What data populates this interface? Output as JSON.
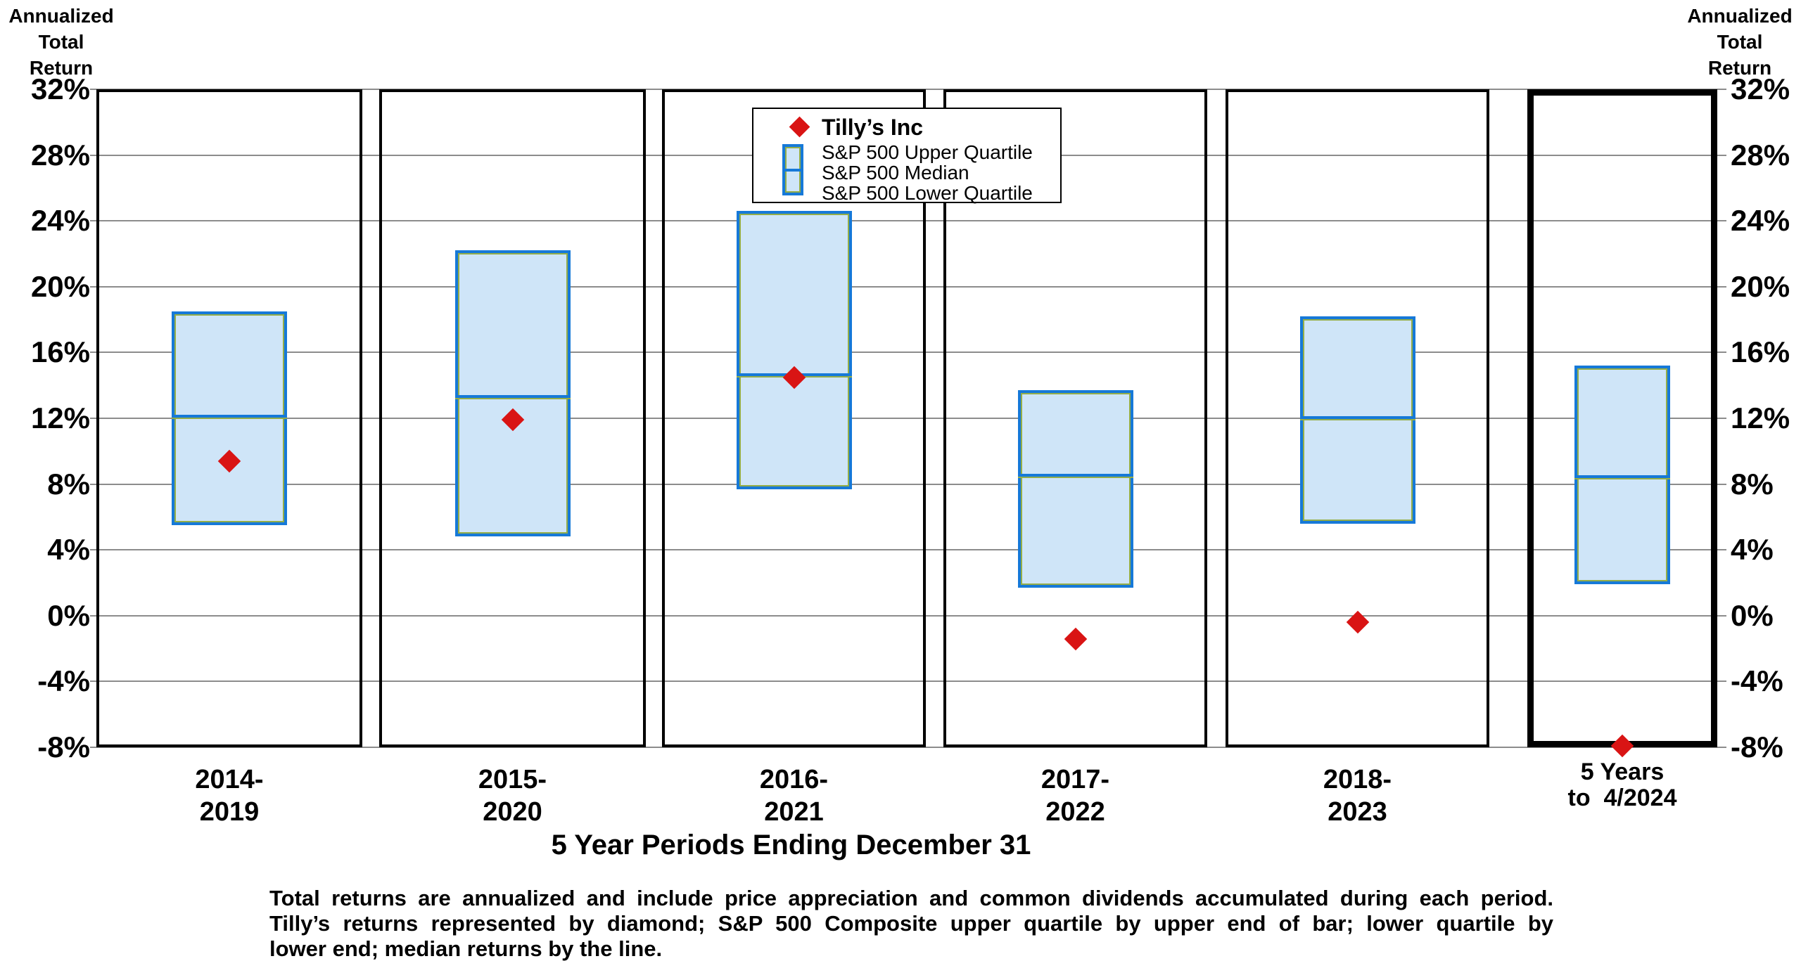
{
  "axis_title": {
    "line1": "Annualized",
    "line2": "Total",
    "line3": "Return"
  },
  "x_axis_title": "5 Year Periods Ending December 31",
  "legend": {
    "tillys_label": "Tilly’s Inc",
    "upper_label": "S&P 500 Upper Quartile",
    "median_label": "S&P 500 Median",
    "lower_label": "S&P 500 Lower Quartile"
  },
  "footnote_lines": [
    "Total returns are annualized and include price appreciation and common dividends accumulated during each period.",
    "Tilly’s returns represented by diamond; S&P 500 Composite upper quartile by upper end of bar; lower quartile by",
    "lower end; median returns by the line."
  ],
  "colors": {
    "bar_fill": "#cfe5f8",
    "bar_border": "#1679d8",
    "bar_inner_edge": "#94ad48",
    "diamond_red": "#d91414",
    "gridline": "#8c8c8c"
  },
  "chart_data": {
    "type": "box",
    "title": "",
    "xlabel": "5 Year Periods Ending December 31",
    "ylabel": "Annualized Total Return",
    "unit": "%",
    "ylim": [
      -8,
      32
    ],
    "y_ticks_percent": [
      32,
      28,
      24,
      20,
      16,
      12,
      8,
      4,
      0,
      -4,
      -8
    ],
    "grid": true,
    "categories": [
      [
        "2014-",
        "2019"
      ],
      [
        "2015-",
        "2020"
      ],
      [
        "2016-",
        "2021"
      ],
      [
        "2017-",
        "2022"
      ],
      [
        "2018-",
        "2023"
      ],
      [
        "5 Years",
        "to  4/2024"
      ]
    ],
    "series": [
      {
        "name": "S&P 500 Upper Quartile",
        "values": [
          18.5,
          22.2,
          24.6,
          13.7,
          18.2,
          15.2
        ]
      },
      {
        "name": "S&P 500 Median",
        "values": [
          12.1,
          13.3,
          14.6,
          8.5,
          12.0,
          8.4
        ]
      },
      {
        "name": "S&P 500 Lower Quartile",
        "values": [
          5.5,
          4.8,
          7.7,
          1.7,
          5.6,
          1.9
        ]
      },
      {
        "name": "Tilly’s Inc",
        "values": [
          9.4,
          11.9,
          14.5,
          -1.4,
          -0.4,
          -7.9
        ]
      }
    ],
    "legend_position": "top-center",
    "highlighted_period": "5 Years to 4/2024"
  }
}
